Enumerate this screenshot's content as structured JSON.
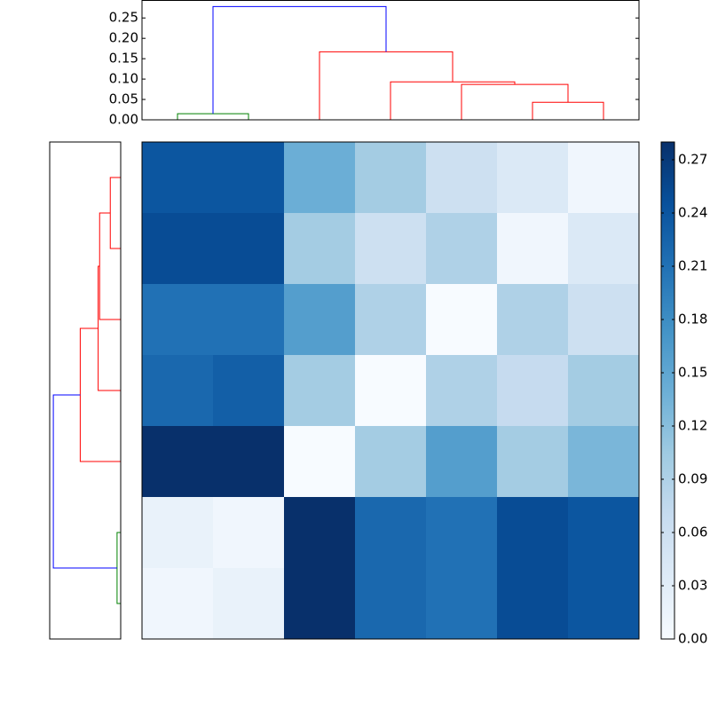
{
  "chart_data": [
    {
      "type": "dendrogram",
      "xlim": [
        0,
        70
      ],
      "ylim": [
        0,
        0.293
      ],
      "yticks": [
        {
          "value": 0,
          "label": "0.00"
        },
        {
          "value": 0.05,
          "label": "0.05"
        },
        {
          "value": 0.1,
          "label": "0.10"
        },
        {
          "value": 0.15,
          "label": "0.15"
        },
        {
          "value": 0.2,
          "label": "0.20"
        },
        {
          "value": 0.25,
          "label": "0.25"
        }
      ],
      "links": [
        {
          "color": "#008000",
          "x": [
            5,
            5,
            15,
            15
          ],
          "y": [
            0,
            0.015,
            0.015,
            0
          ]
        },
        {
          "color": "#ff0000",
          "x": [
            55,
            55,
            65,
            65
          ],
          "y": [
            0,
            0.043,
            0.043,
            0
          ]
        },
        {
          "color": "#ff0000",
          "x": [
            45,
            45,
            60,
            60
          ],
          "y": [
            0,
            0.087,
            0.087,
            0.043
          ]
        },
        {
          "color": "#ff0000",
          "x": [
            35,
            35,
            52.5,
            52.5
          ],
          "y": [
            0,
            0.093,
            0.093,
            0.087
          ]
        },
        {
          "color": "#ff0000",
          "x": [
            25,
            25,
            43.75,
            43.75
          ],
          "y": [
            0,
            0.167,
            0.167,
            0.093
          ]
        },
        {
          "color": "#0000ff",
          "x": [
            10,
            10,
            34.375,
            34.375
          ],
          "y": [
            0.015,
            0.278,
            0.278,
            0.167
          ]
        }
      ]
    },
    {
      "type": "heatmap",
      "values": [
        [
          0.24,
          0.24,
          0.14,
          0.1,
          0.06,
          0.04,
          0.01
        ],
        [
          0.25,
          0.25,
          0.1,
          0.06,
          0.09,
          0.01,
          0.04
        ],
        [
          0.21,
          0.21,
          0.16,
          0.09,
          0.0,
          0.09,
          0.06
        ],
        [
          0.22,
          0.23,
          0.1,
          0.0,
          0.09,
          0.07,
          0.1
        ],
        [
          0.28,
          0.28,
          0.0,
          0.1,
          0.16,
          0.1,
          0.13
        ],
        [
          0.02,
          0.01,
          0.28,
          0.22,
          0.21,
          0.25,
          0.24
        ],
        [
          0.01,
          0.02,
          0.28,
          0.22,
          0.21,
          0.25,
          0.24
        ]
      ],
      "clim": [
        0,
        0.28
      ],
      "colormap": [
        "#f7fbff",
        "#deebf7",
        "#c6dbef",
        "#9ecae1",
        "#6baed6",
        "#4292c6",
        "#2171b5",
        "#08519c",
        "#08306b"
      ],
      "colorbar_ticks": [
        {
          "value": 0,
          "label": "0.00"
        },
        {
          "value": 0.03,
          "label": "0.03"
        },
        {
          "value": 0.06,
          "label": "0.06"
        },
        {
          "value": 0.09,
          "label": "0.09"
        },
        {
          "value": 0.12,
          "label": "0.12"
        },
        {
          "value": 0.15,
          "label": "0.15"
        },
        {
          "value": 0.18,
          "label": "0.18"
        },
        {
          "value": 0.21,
          "label": "0.21"
        },
        {
          "value": 0.24,
          "label": "0.24"
        },
        {
          "value": 0.27,
          "label": "0.27"
        }
      ]
    }
  ]
}
